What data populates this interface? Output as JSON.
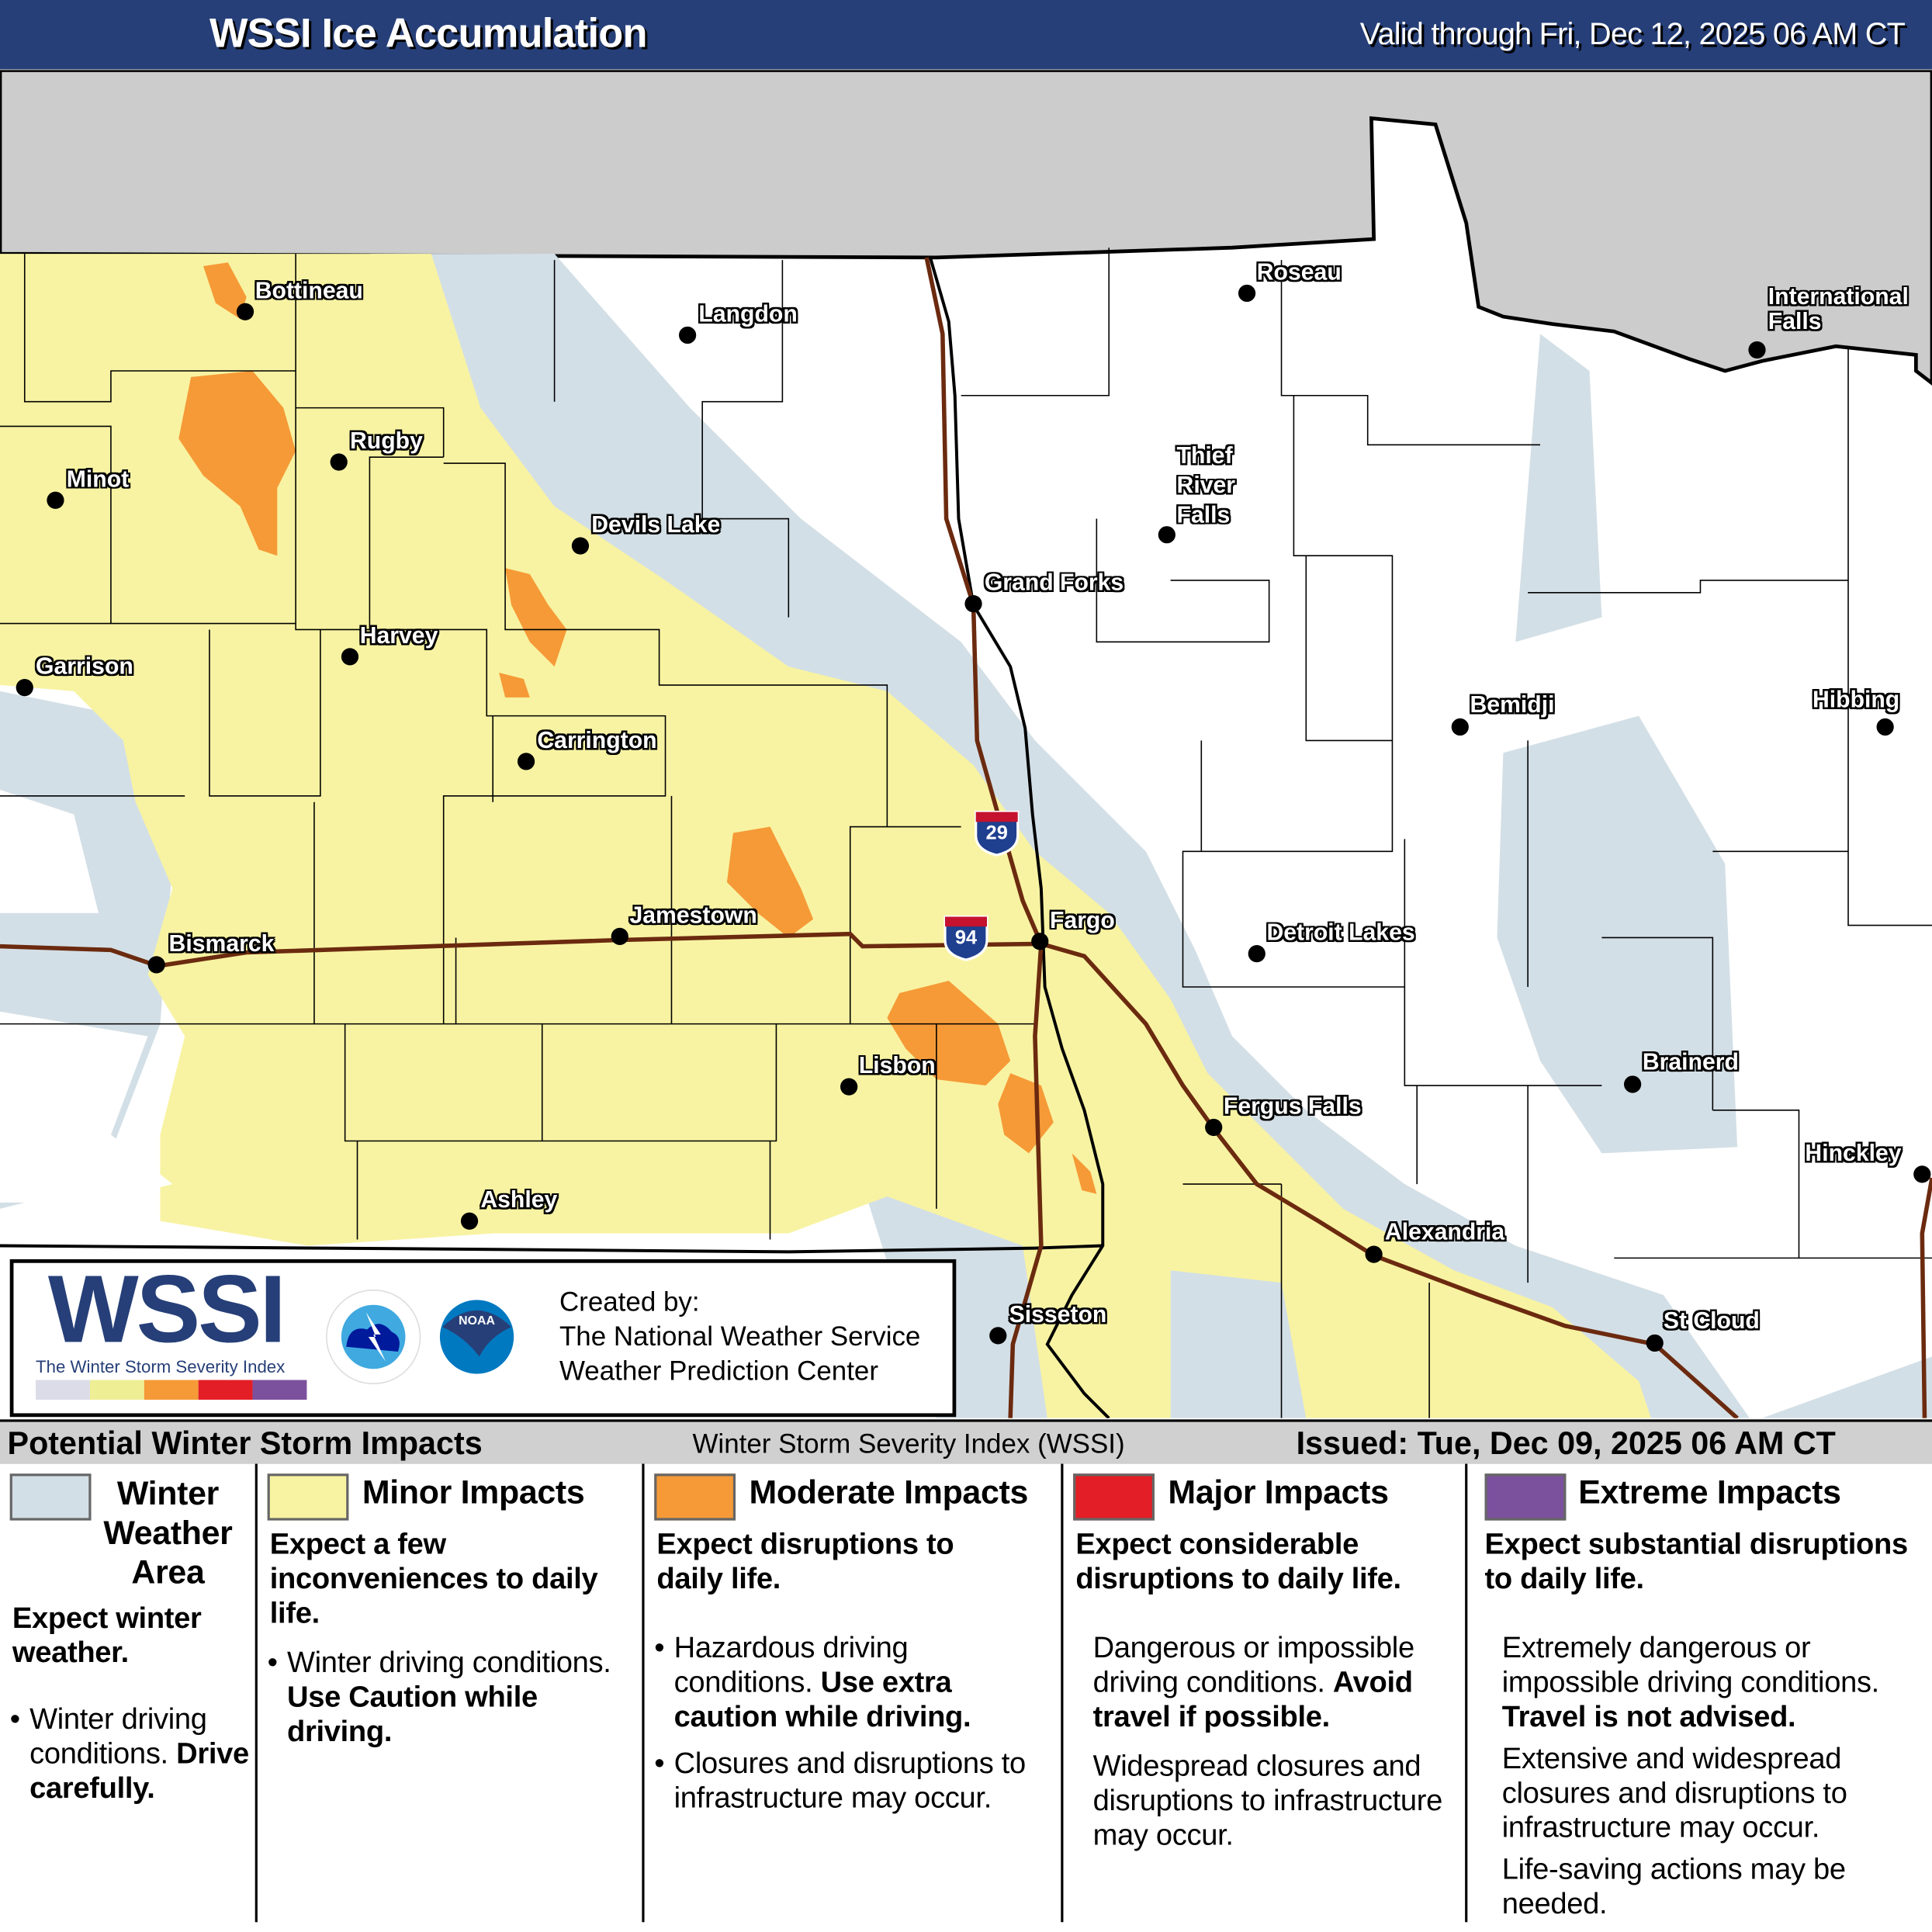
{
  "header": {
    "title": "WSSI Ice Accumulation",
    "valid": "Valid through Fri, Dec 12, 2025 06 AM CT"
  },
  "colors": {
    "header_bg": "#263f78",
    "canada": "#cccccc",
    "winter_weather": "#d3dfe6",
    "minor": "#f8f3a2",
    "moderate": "#f59a37",
    "major": "#e31e26",
    "extreme": "#7b519d",
    "roads": "#6b2a0f"
  },
  "map": {
    "cities": [
      "Bottineau",
      "Langdon",
      "Roseau",
      "International\nFalls",
      "Rugby",
      "Minot",
      "Devils Lake",
      "Thief\nRiver\nFalls",
      "Grand Forks",
      "Harvey",
      "Garrison",
      "Carrington",
      "Bemidji",
      "Hibbing",
      "Jamestown",
      "Bismarck",
      "Fargo",
      "Detroit Lakes",
      "Lisbon",
      "Brainerd",
      "Fergus Falls",
      "Hinckley",
      "Ashley",
      "Alexandria",
      "Sisseton",
      "St Cloud"
    ],
    "interstates": [
      "29",
      "94"
    ]
  },
  "logo": {
    "wssi": "WSSI",
    "subtitle": "The Winter Storm Severity Index",
    "created_by": "Created by:",
    "org1": "The National Weather Service",
    "org2": "Weather Prediction Center",
    "nws_text": "NATIONAL WEATHER SERVICE",
    "noaa_text": "NOAA"
  },
  "legend": {
    "title": "Potential Winter Storm Impacts",
    "index": "Winter Storm Severity Index (WSSI)",
    "issued": "Issued: Tue, Dec 09, 2025 06 AM CT",
    "categories": [
      {
        "name": "Winter\nWeather\nArea",
        "summary": "Expect winter weather.",
        "items": [
          {
            "text": "Winter driving conditions.",
            "bold": "Drive carefully."
          }
        ]
      },
      {
        "name": "Minor Impacts",
        "summary": "Expect a few inconveniences to daily life.",
        "items": [
          {
            "text": "Winter driving conditions.",
            "bold": "Use Caution while driving."
          }
        ]
      },
      {
        "name": "Moderate Impacts",
        "summary": "Expect disruptions to daily life.",
        "items": [
          {
            "text": "Hazardous driving conditions.",
            "bold": "Use extra caution while driving."
          },
          {
            "text": "Closures and disruptions to infrastructure may occur."
          }
        ]
      },
      {
        "name": "Major Impacts",
        "summary": "Expect considerable disruptions to daily life.",
        "items": [
          {
            "text": "Dangerous or impossible driving conditions.",
            "bold": "Avoid travel if possible."
          },
          {
            "text": "Widespread closures and disruptions to infrastructure may occur."
          }
        ]
      },
      {
        "name": "Extreme Impacts",
        "summary": "Expect substantial disruptions to daily life.",
        "items": [
          {
            "text": "Extremely dangerous or impossible driving conditions.",
            "bold": "Travel is not advised."
          },
          {
            "text": "Extensive and widespread closures and disruptions to infrastructure may occur."
          },
          {
            "text": "Life-saving actions may be needed."
          }
        ]
      }
    ]
  }
}
